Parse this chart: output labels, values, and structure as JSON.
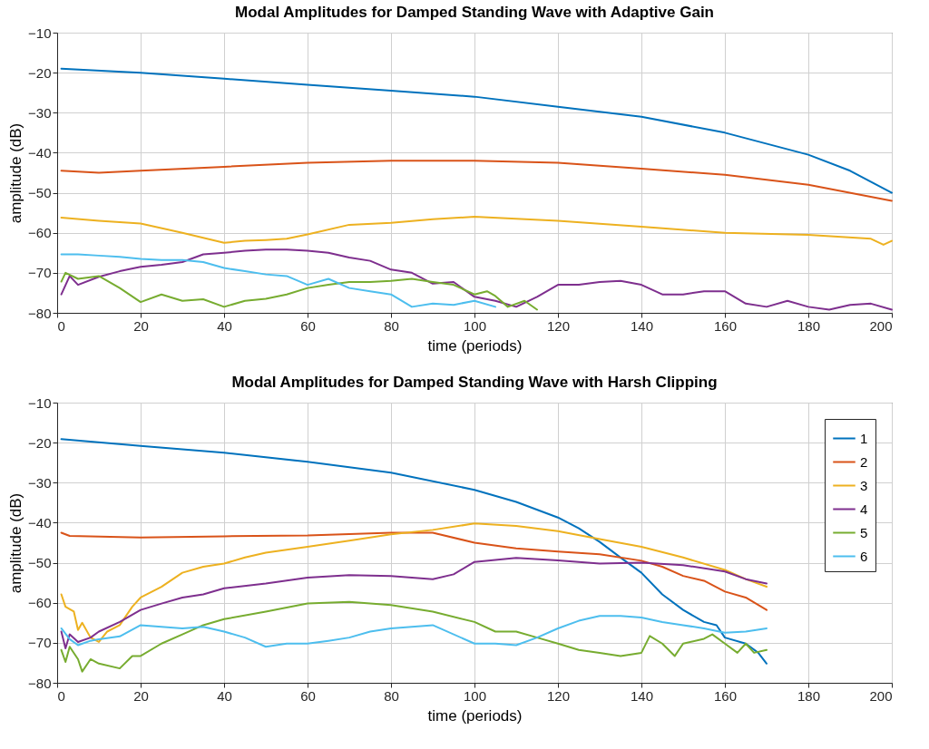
{
  "chart_data": [
    {
      "type": "line",
      "title": "Modal Amplitudes for Damped Standing Wave with Adaptive Gain",
      "xlabel": "time (periods)",
      "ylabel": "amplitude (dB)",
      "xlim": [
        0,
        200
      ],
      "ylim": [
        -80,
        -10
      ],
      "xticks": [
        0,
        20,
        40,
        60,
        80,
        100,
        120,
        140,
        160,
        180,
        200
      ],
      "yticks": [
        -80,
        -70,
        -60,
        -50,
        -40,
        -30,
        -20,
        -10
      ],
      "grid": true,
      "series": [
        {
          "color": "#0072bd",
          "x": [
            1,
            20,
            40,
            60,
            80,
            100,
            120,
            140,
            160,
            180,
            190,
            200
          ],
          "values": [
            -19,
            -20,
            -21.5,
            -23,
            -24.5,
            -26,
            -28.5,
            -31,
            -35,
            -40.5,
            -44.5,
            -50
          ]
        },
        {
          "color": "#d95319",
          "x": [
            1,
            10,
            20,
            40,
            60,
            80,
            100,
            120,
            140,
            160,
            180,
            200
          ],
          "values": [
            -44.5,
            -45,
            -44.5,
            -43.5,
            -42.5,
            -42,
            -42,
            -42.5,
            -44,
            -45.5,
            -48,
            -52
          ]
        },
        {
          "color": "#edb120",
          "x": [
            1,
            10,
            20,
            30,
            40,
            45,
            50,
            55,
            60,
            70,
            80,
            90,
            100,
            120,
            140,
            160,
            180,
            195,
            198,
            200
          ],
          "values": [
            -56.2,
            -57,
            -57.7,
            -60,
            -62.5,
            -62,
            -61.8,
            -61.5,
            -60.4,
            -58,
            -57.5,
            -56.6,
            -56,
            -57,
            -58.5,
            -60,
            -60.5,
            -61.5,
            -63,
            -62
          ]
        },
        {
          "color": "#7e2f8e",
          "x": [
            1,
            3,
            5,
            10,
            15,
            20,
            25,
            30,
            35,
            40,
            45,
            50,
            55,
            60,
            65,
            70,
            75,
            80,
            85,
            90,
            95,
            100,
            105,
            110,
            115,
            120,
            125,
            130,
            135,
            140,
            145,
            150,
            155,
            160,
            165,
            170,
            175,
            180,
            185,
            190,
            195,
            200
          ],
          "values": [
            -75.4,
            -70.8,
            -73,
            -71,
            -69.6,
            -68.5,
            -68,
            -67.3,
            -65.4,
            -65,
            -64.5,
            -64.2,
            -64.2,
            -64.5,
            -65,
            -66.2,
            -67,
            -69.2,
            -70,
            -72.7,
            -72.3,
            -76,
            -77,
            -78.5,
            -76,
            -73,
            -73,
            -72.3,
            -72,
            -73,
            -75.4,
            -75.4,
            -74.6,
            -74.6,
            -77.7,
            -78.5,
            -77,
            -78.5,
            -79.2,
            -78,
            -77.7,
            -79.2
          ]
        },
        {
          "color": "#77ac30",
          "x": [
            1,
            2,
            5,
            10,
            15,
            20,
            25,
            30,
            35,
            40,
            45,
            50,
            55,
            60,
            65,
            70,
            75,
            80,
            85,
            90,
            95,
            100,
            103,
            105,
            108,
            112,
            115
          ],
          "values": [
            -72.2,
            -70,
            -71.5,
            -70.8,
            -73.8,
            -77.3,
            -75.4,
            -77,
            -76.6,
            -78.5,
            -77,
            -76.5,
            -75.4,
            -73.8,
            -73,
            -72.3,
            -72.3,
            -72,
            -71.5,
            -72.3,
            -73,
            -75.4,
            -74.6,
            -75.8,
            -78.5,
            -77,
            -79.2
          ]
        },
        {
          "color": "#4dbeee",
          "x": [
            1,
            5,
            10,
            15,
            20,
            25,
            30,
            35,
            40,
            45,
            50,
            55,
            60,
            65,
            70,
            75,
            80,
            85,
            90,
            95,
            100,
            105
          ],
          "values": [
            -65.4,
            -65.4,
            -65.7,
            -66,
            -66.5,
            -66.8,
            -66.8,
            -67.3,
            -68.8,
            -69.6,
            -70.4,
            -70.8,
            -73,
            -71.5,
            -73.8,
            -74.6,
            -75.4,
            -78.5,
            -77.7,
            -78,
            -77,
            -78.5
          ]
        }
      ]
    },
    {
      "type": "line",
      "title": "Modal Amplitudes for Damped Standing Wave with Harsh Clipping",
      "xlabel": "time (periods)",
      "ylabel": "amplitude (dB)",
      "xlim": [
        0,
        200
      ],
      "ylim": [
        -80,
        -10
      ],
      "xticks": [
        0,
        20,
        40,
        60,
        80,
        100,
        120,
        140,
        160,
        180,
        200
      ],
      "yticks": [
        -80,
        -70,
        -60,
        -50,
        -40,
        -30,
        -20,
        -10
      ],
      "grid": true,
      "legend": "top right",
      "series": [
        {
          "name": "1",
          "color": "#0072bd",
          "x": [
            1,
            20,
            40,
            60,
            80,
            100,
            110,
            120,
            125,
            130,
            135,
            140,
            145,
            150,
            155,
            158,
            160,
            165,
            168,
            170
          ],
          "values": [
            -19.1,
            -20.8,
            -22.5,
            -24.8,
            -27.5,
            -31.8,
            -34.8,
            -38.7,
            -41.4,
            -44.8,
            -48.7,
            -52.5,
            -57.9,
            -61.8,
            -64.8,
            -65.6,
            -68.7,
            -70.2,
            -72.5,
            -75.2
          ]
        },
        {
          "name": "2",
          "color": "#d95319",
          "x": [
            1,
            3,
            20,
            40,
            60,
            80,
            90,
            100,
            110,
            120,
            130,
            140,
            145,
            150,
            155,
            160,
            165,
            170
          ],
          "values": [
            -42.5,
            -43.3,
            -43.7,
            -43.4,
            -43.2,
            -42.5,
            -42.5,
            -45,
            -46.4,
            -47.2,
            -47.9,
            -49.5,
            -51,
            -53.3,
            -54.5,
            -57.2,
            -58.7,
            -61.8
          ]
        },
        {
          "name": "3",
          "color": "#edb120",
          "x": [
            1,
            2,
            4,
            5,
            6,
            8,
            10,
            12,
            15,
            18,
            20,
            25,
            30,
            35,
            40,
            45,
            50,
            60,
            70,
            80,
            90,
            100,
            110,
            120,
            130,
            140,
            150,
            160,
            165,
            170
          ],
          "values": [
            -57.9,
            -61,
            -62.2,
            -66.8,
            -65,
            -68.7,
            -69.8,
            -67.2,
            -65.6,
            -61,
            -58.7,
            -56,
            -52.5,
            -51,
            -50.2,
            -48.7,
            -47.5,
            -46,
            -44.5,
            -42.9,
            -41.8,
            -40.2,
            -40.8,
            -42.1,
            -44.1,
            -46,
            -48.7,
            -51.8,
            -54.1,
            -56
          ]
        },
        {
          "name": "4",
          "color": "#7e2f8e",
          "x": [
            1,
            2,
            3,
            5,
            8,
            10,
            15,
            20,
            25,
            30,
            35,
            40,
            50,
            60,
            70,
            80,
            85,
            90,
            95,
            100,
            110,
            120,
            130,
            140,
            150,
            160,
            165,
            170
          ],
          "values": [
            -67.2,
            -71.4,
            -67.9,
            -69.8,
            -68.7,
            -67.2,
            -64.8,
            -61.8,
            -60.2,
            -58.7,
            -57.9,
            -56.4,
            -55.2,
            -53.7,
            -53.1,
            -53.3,
            -53.7,
            -54.1,
            -52.9,
            -49.8,
            -48.8,
            -49.4,
            -50.2,
            -50,
            -50.6,
            -52.2,
            -54.1,
            -55.2
          ]
        },
        {
          "name": "5",
          "color": "#77ac30",
          "x": [
            1,
            2,
            3,
            5,
            6,
            8,
            10,
            15,
            18,
            20,
            25,
            30,
            35,
            40,
            50,
            60,
            70,
            80,
            90,
            100,
            105,
            110,
            115,
            120,
            125,
            130,
            135,
            140,
            142,
            145,
            148,
            150,
            155,
            157,
            160,
            163,
            165,
            167,
            170
          ],
          "values": [
            -71.8,
            -74.8,
            -71,
            -74.1,
            -77.2,
            -74.1,
            -75.2,
            -76.4,
            -73.3,
            -73.3,
            -70.2,
            -67.9,
            -65.6,
            -64.1,
            -62.2,
            -60.2,
            -59.8,
            -60.6,
            -62.2,
            -64.8,
            -67.2,
            -67.2,
            -68.7,
            -70.2,
            -71.8,
            -72.5,
            -73.3,
            -72.5,
            -68.3,
            -70.2,
            -73.3,
            -70.2,
            -69,
            -67.9,
            -70.2,
            -72.5,
            -70.2,
            -72.5,
            -71.8
          ]
        },
        {
          "name": "6",
          "color": "#4dbeee",
          "x": [
            1,
            3,
            5,
            8,
            10,
            15,
            20,
            25,
            30,
            35,
            40,
            45,
            50,
            55,
            60,
            65,
            70,
            75,
            80,
            90,
            100,
            105,
            110,
            115,
            120,
            125,
            130,
            135,
            140,
            145,
            150,
            155,
            160,
            165,
            170
          ],
          "values": [
            -66.4,
            -69.1,
            -70.6,
            -69.5,
            -69.1,
            -68.4,
            -65.6,
            -66,
            -66.4,
            -66,
            -67.2,
            -68.7,
            -71,
            -70.2,
            -70.2,
            -69.5,
            -68.7,
            -67.2,
            -66.4,
            -65.6,
            -70.2,
            -70.2,
            -70.6,
            -68.7,
            -66.4,
            -64.5,
            -63.3,
            -63.3,
            -63.7,
            -64.8,
            -65.6,
            -66.4,
            -67.5,
            -67.2,
            -66.4
          ]
        }
      ]
    }
  ]
}
